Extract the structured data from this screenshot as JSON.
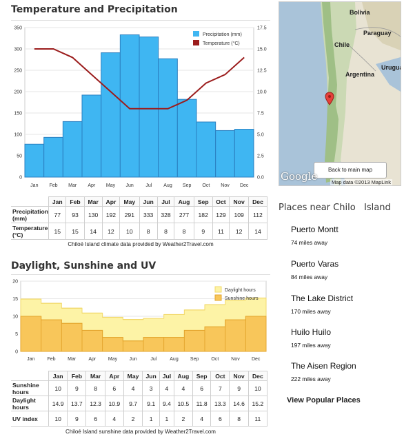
{
  "temperature_section": {
    "title": "Temperature and Precipitation",
    "credit": "Chiloé Island climate data provided by Weather2Travel.com"
  },
  "sun_section": {
    "title": "Daylight, Sunshine and UV",
    "credit": "Chiloé Island sunshine data provided by Weather2Travel.com"
  },
  "months": [
    "Jan",
    "Feb",
    "Mar",
    "Apr",
    "May",
    "Jun",
    "Jul",
    "Aug",
    "Sep",
    "Oct",
    "Nov",
    "Dec"
  ],
  "climate_table": {
    "rows": [
      {
        "label": "Precipitation (mm)",
        "values": [
          "77",
          "93",
          "130",
          "192",
          "291",
          "333",
          "328",
          "277",
          "182",
          "129",
          "109",
          "112"
        ]
      },
      {
        "label": "Temperature (°C)",
        "values": [
          "15",
          "15",
          "14",
          "12",
          "10",
          "8",
          "8",
          "8",
          "9",
          "11",
          "12",
          "14"
        ]
      }
    ]
  },
  "sun_table": {
    "rows": [
      {
        "label": "Sunshine hours",
        "values": [
          "10",
          "9",
          "8",
          "6",
          "4",
          "3",
          "4",
          "4",
          "6",
          "7",
          "9",
          "10"
        ]
      },
      {
        "label": "Daylight hours",
        "values": [
          "14.9",
          "13.7",
          "12.3",
          "10.9",
          "9.7",
          "9.1",
          "9.4",
          "10.5",
          "11.8",
          "13.3",
          "14.6",
          "15.2"
        ]
      },
      {
        "label": "UV index",
        "values": [
          "10",
          "9",
          "6",
          "4",
          "2",
          "1",
          "1",
          "2",
          "4",
          "6",
          "8",
          "11"
        ]
      }
    ]
  },
  "chart_data": [
    {
      "type": "bar",
      "categories": [
        "Jan",
        "Feb",
        "Mar",
        "Apr",
        "May",
        "Jun",
        "Jul",
        "Aug",
        "Sep",
        "Oct",
        "Nov",
        "Dec"
      ],
      "series": [
        {
          "name": "Precipitation (mm)",
          "type": "bar",
          "axis": "left",
          "values": [
            77,
            93,
            130,
            192,
            291,
            333,
            328,
            277,
            182,
            129,
            109,
            112
          ]
        },
        {
          "name": "Temperature (°C)",
          "type": "line",
          "axis": "right",
          "values": [
            15,
            15,
            14,
            12,
            10,
            8,
            8,
            8,
            9,
            11,
            12,
            14
          ]
        }
      ],
      "ylim": [
        0,
        350
      ],
      "yticks": [
        0,
        50,
        100,
        150,
        200,
        250,
        300,
        350
      ],
      "y2lim": [
        0,
        17.5
      ],
      "y2ticks": [
        "0.0",
        "2.5",
        "5.0",
        "7.5",
        "10.0",
        "12.5",
        "15.0",
        "17.5"
      ],
      "legend": "top-right",
      "grid": true,
      "colors": {
        "bar": "#3fb6f2",
        "bar_edge": "#2a7fc0",
        "line": "#9b1c1c"
      }
    },
    {
      "type": "area",
      "categories": [
        "Jan",
        "Feb",
        "Mar",
        "Apr",
        "May",
        "Jun",
        "Jul",
        "Aug",
        "Sep",
        "Oct",
        "Nov",
        "Dec"
      ],
      "series": [
        {
          "name": "Daylight hours",
          "values": [
            14.9,
            13.7,
            12.3,
            10.9,
            9.7,
            9.1,
            9.4,
            10.5,
            11.8,
            13.3,
            14.6,
            15.2
          ]
        },
        {
          "name": "Sunshine hours",
          "values": [
            10,
            9,
            8,
            6,
            4,
            3,
            4,
            4,
            6,
            7,
            9,
            10
          ]
        }
      ],
      "ylim": [
        0,
        20
      ],
      "yticks": [
        0,
        5,
        10,
        15,
        20
      ],
      "legend": "top-right",
      "grid": true,
      "colors": {
        "daylight": "#fdf3a6",
        "daylight_edge": "#f2d96b",
        "sunshine": "#f8c65a",
        "sunshine_edge": "#e3a52d"
      }
    }
  ],
  "map": {
    "labels": [
      {
        "text": "Bolivia"
      },
      {
        "text": "Paraguay"
      },
      {
        "text": "Chile"
      },
      {
        "text": "Uruguay"
      },
      {
        "text": "Argentina"
      }
    ],
    "back_button": "Back to main map",
    "logo": "Google",
    "footer": "Map data ©2013 MapLink"
  },
  "places": {
    "title": "Places near Chilo   Island",
    "items": [
      {
        "name": "Puerto Montt",
        "distance": "74 miles away"
      },
      {
        "name": "Puerto Varas",
        "distance": "84 miles away"
      },
      {
        "name": "The Lake District",
        "distance": "170 miles away"
      },
      {
        "name": "Huilo Huilo",
        "distance": "197 miles away"
      },
      {
        "name": "The Aisen Region",
        "distance": "222 miles away"
      }
    ],
    "view_all": "View Popular Places"
  }
}
